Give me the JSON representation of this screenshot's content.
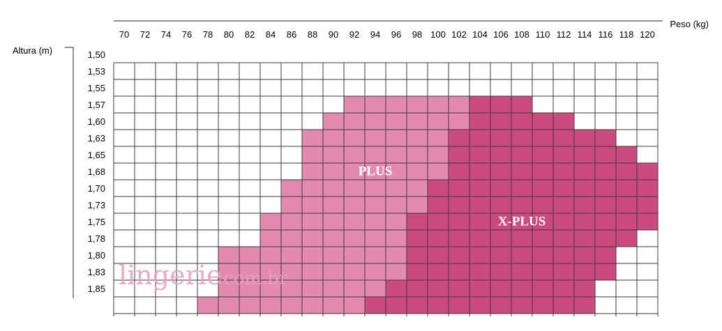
{
  "chart_data": {
    "type": "heatmap",
    "title": "",
    "xlabel": "Peso (kg)",
    "ylabel": "Altura (m)",
    "x_ticks": [
      "70",
      "72",
      "74",
      "76",
      "78",
      "80",
      "82",
      "84",
      "86",
      "88",
      "90",
      "92",
      "94",
      "96",
      "98",
      "100",
      "102",
      "104",
      "106",
      "108",
      "110",
      "112",
      "114",
      "116",
      "118",
      "120"
    ],
    "y_ticks": [
      "1,50",
      "1,53",
      "1,55",
      "1,57",
      "1,60",
      "1,63",
      "1,65",
      "1,68",
      "1,70",
      "1,73",
      "1,75",
      "1,78",
      "1,80",
      "1,83",
      "1,85"
    ],
    "legend": [
      "PLUS",
      "X-PLUS"
    ],
    "colors": {
      "PLUS": "#e38bae",
      "X-PLUS": "#cc4a80",
      "grid": "#3a3a3a",
      "empty": "#ffffff"
    },
    "cells": {
      "PLUS": [
        {
          "height": "1,55",
          "from": "92",
          "to": "102"
        },
        {
          "height": "1,57",
          "from": "90",
          "to": "102"
        },
        {
          "height": "1,60",
          "from": "88",
          "to": "100"
        },
        {
          "height": "1,63",
          "from": "88",
          "to": "100"
        },
        {
          "height": "1,65",
          "from": "88",
          "to": "100"
        },
        {
          "height": "1,68",
          "from": "86",
          "to": "98"
        },
        {
          "height": "1,70",
          "from": "86",
          "to": "98"
        },
        {
          "height": "1,73",
          "from": "84",
          "to": "96"
        },
        {
          "height": "1,75",
          "from": "84",
          "to": "96"
        },
        {
          "height": "1,78",
          "from": "80",
          "to": "96"
        },
        {
          "height": "1,80",
          "from": "80",
          "to": "96"
        },
        {
          "height": "1,83",
          "from": "80",
          "to": "94"
        },
        {
          "height": "1,85",
          "from": "78",
          "to": "92"
        }
      ],
      "X-PLUS": [
        {
          "height": "1,55",
          "from": "104",
          "to": "108"
        },
        {
          "height": "1,57",
          "from": "104",
          "to": "112"
        },
        {
          "height": "1,60",
          "from": "102",
          "to": "116"
        },
        {
          "height": "1,63",
          "from": "102",
          "to": "118"
        },
        {
          "height": "1,65",
          "from": "102",
          "to": "120"
        },
        {
          "height": "1,68",
          "from": "100",
          "to": "120"
        },
        {
          "height": "1,70",
          "from": "100",
          "to": "120"
        },
        {
          "height": "1,73",
          "from": "98",
          "to": "120"
        },
        {
          "height": "1,75",
          "from": "98",
          "to": "118"
        },
        {
          "height": "1,78",
          "from": "98",
          "to": "116"
        },
        {
          "height": "1,80",
          "from": "98",
          "to": "116"
        },
        {
          "height": "1,83",
          "from": "96",
          "to": "114"
        },
        {
          "height": "1,85",
          "from": "94",
          "to": "114"
        }
      ]
    },
    "annotations": [
      {
        "text": "PLUS",
        "x": "94",
        "y": "1,65"
      },
      {
        "text": "X-PLUS",
        "x": "108",
        "y": "1,73"
      }
    ]
  },
  "watermark": {
    "main": "lingerie",
    "suffix": ".com.br"
  }
}
